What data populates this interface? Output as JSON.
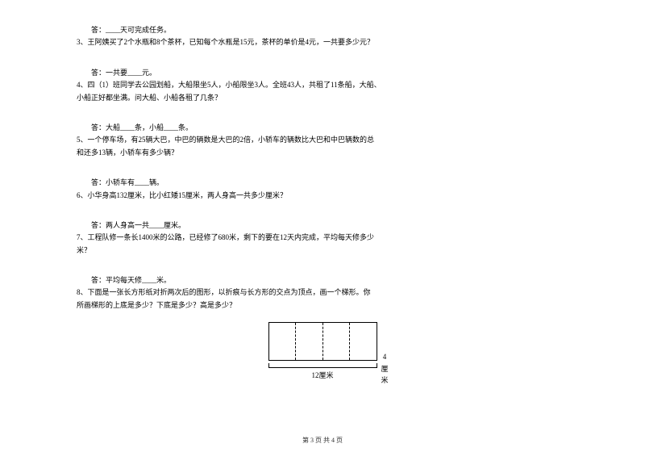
{
  "q2_answer": "答：____天可完成任务。",
  "q3_line1": "3、王阿姨买了2个水瓶和8个茶杯，已知每个水瓶是15元，茶杯的单价是4元，一共要多少元？",
  "q3_answer": "答：一共要____元。",
  "q4_line1": "4、四（1）班同学去公园划船，大船限坐5人，小船限坐3人。全班43人，共租了11条船，大船、",
  "q4_line2": "小船正好都坐满。问大船、小船各租了几条？",
  "q4_answer": "答：大船____条，小船____条。",
  "q5_line1": "5、一个停车场，有25辆大巴，中巴的辆数是大巴的2倍，小轿车的辆数比大巴和中巴辆数的总",
  "q5_line2": "和还多13辆，小轿车有多少辆？",
  "q5_answer": "答：小轿车有____辆。",
  "q6_line1": "6、小华身高132厘米，比小红矮15厘米，两人身高一共多少厘米？",
  "q6_answer": "答：两人身高一共____厘米。",
  "q7_line1": "7、工程队修一条长1400米的公路，已经修了680米，剩下的要在12天内完成，平均每天修多少",
  "q7_line2": "米？",
  "q7_answer": "答：平均每天修____米。",
  "q8_line1": "8、下面是一张长方形纸对折两次后的图形，以折痕与长方形的交点为顶点，画一个梯形。你",
  "q8_line2": "所画梯形的上底是多少？下底是多少？高是多少？",
  "diagram_right": "4厘米",
  "diagram_bottom": "12厘米",
  "footer": "第 3 页 共 4 页"
}
